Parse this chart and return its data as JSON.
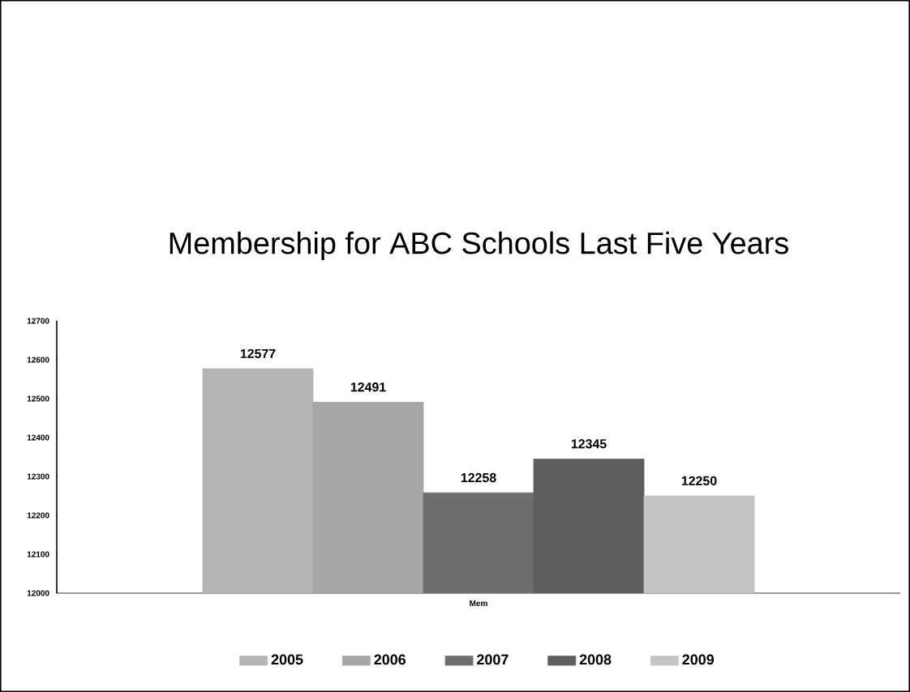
{
  "chart_data": {
    "type": "bar",
    "title": "Membership for ABC Schools Last Five Years",
    "categories": [
      "Mem"
    ],
    "series": [
      {
        "name": "2005",
        "color": "#b4b4b4",
        "values": [
          12577
        ]
      },
      {
        "name": "2006",
        "color": "#a6a6a6",
        "values": [
          12491
        ]
      },
      {
        "name": "2007",
        "color": "#6e6e6e",
        "values": [
          12258
        ]
      },
      {
        "name": "2008",
        "color": "#5e5e5e",
        "values": [
          12345
        ]
      },
      {
        "name": "2009",
        "color": "#c4c4c4",
        "values": [
          12250
        ]
      }
    ],
    "ylim": [
      12000,
      12700
    ],
    "yticks": [
      12000,
      12100,
      12200,
      12300,
      12400,
      12500,
      12600,
      12700
    ],
    "data_labels": true,
    "legend": "bottom",
    "grid": false
  }
}
